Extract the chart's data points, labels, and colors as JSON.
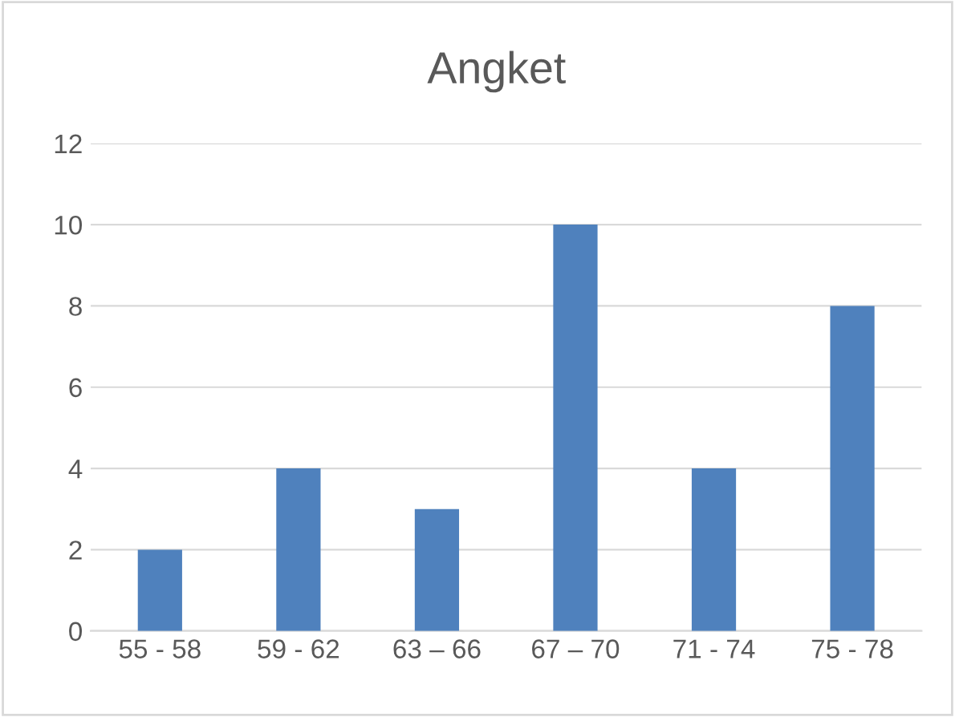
{
  "chart_data": {
    "type": "bar",
    "title": "Angket",
    "categories": [
      "55 - 58",
      "59 - 62",
      "63 – 66",
      "67 – 70",
      "71 - 74",
      "75 - 78"
    ],
    "values": [
      2,
      4,
      3,
      10,
      4,
      8
    ],
    "color": "#4f81bd",
    "ylim": [
      0,
      12
    ],
    "yticks": [
      0,
      2,
      4,
      6,
      8,
      10,
      12
    ],
    "grid": "y",
    "legend": false
  }
}
